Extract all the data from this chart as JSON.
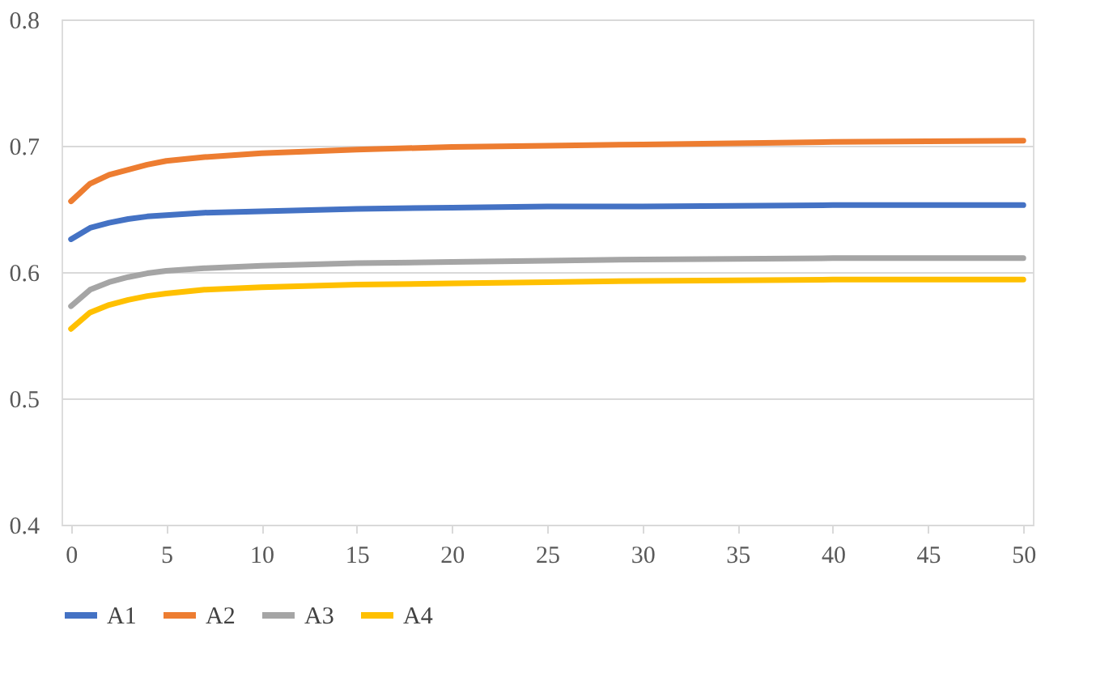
{
  "chart_data": {
    "type": "line",
    "x": [
      0,
      1,
      2,
      3,
      4,
      5,
      7,
      10,
      15,
      20,
      25,
      30,
      40,
      50
    ],
    "series": [
      {
        "name": "A1",
        "color": "#4472c4",
        "values": [
          0.626,
          0.635,
          0.639,
          0.642,
          0.644,
          0.645,
          0.647,
          0.648,
          0.65,
          0.651,
          0.652,
          0.652,
          0.653,
          0.653
        ]
      },
      {
        "name": "A2",
        "color": "#ed7d31",
        "values": [
          0.656,
          0.67,
          0.677,
          0.681,
          0.685,
          0.688,
          0.691,
          0.694,
          0.697,
          0.699,
          0.7,
          0.701,
          0.703,
          0.704
        ]
      },
      {
        "name": "A3",
        "color": "#a5a5a5",
        "values": [
          0.573,
          0.586,
          0.592,
          0.596,
          0.599,
          0.601,
          0.603,
          0.605,
          0.607,
          0.608,
          0.609,
          0.61,
          0.611,
          0.611
        ]
      },
      {
        "name": "A4",
        "color": "#ffc000",
        "values": [
          0.555,
          0.568,
          0.574,
          0.578,
          0.581,
          0.583,
          0.586,
          0.588,
          0.59,
          0.591,
          0.592,
          0.593,
          0.594,
          0.594
        ]
      }
    ],
    "xlim": [
      -0.5,
      50.5
    ],
    "xticks": [
      0,
      5,
      10,
      15,
      20,
      25,
      30,
      35,
      40,
      45,
      50
    ],
    "ylim": [
      0.4,
      0.8
    ],
    "yticks": [
      0.4,
      0.5,
      0.6,
      0.7,
      0.8
    ],
    "grid": "y",
    "legend": "bottom",
    "marker": "none",
    "line_style": "solid"
  }
}
